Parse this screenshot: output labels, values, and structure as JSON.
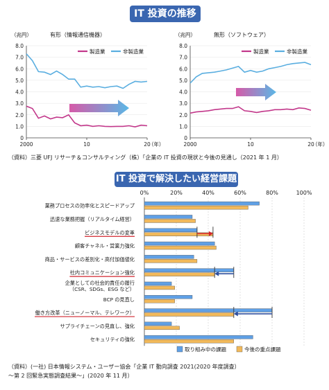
{
  "header": {
    "title": "IT 投資の推移"
  },
  "chart_data": [
    {
      "type": "line",
      "title": "有形（情報通信機器）",
      "ylabel": "（兆円）",
      "xlabel": "（年）",
      "ylim": [
        0,
        8.0
      ],
      "yticks": [
        "0",
        "1.0",
        "2.0",
        "3.0",
        "4.0",
        "5.0",
        "6.0",
        "7.0",
        "8.0"
      ],
      "xticks": [
        "2000",
        "10",
        "20"
      ],
      "x": [
        2000,
        2001,
        2002,
        2003,
        2004,
        2005,
        2006,
        2007,
        2008,
        2009,
        2010,
        2011,
        2012,
        2013,
        2014,
        2015,
        2016,
        2017,
        2018,
        2019,
        2020
      ],
      "series": [
        {
          "name": "製造業",
          "color": "#c2378a",
          "values": [
            2.75,
            2.55,
            1.7,
            1.9,
            1.65,
            1.8,
            1.75,
            2.0,
            1.3,
            1.05,
            1.1,
            1.0,
            1.05,
            1.0,
            0.98,
            1.0,
            1.0,
            1.05,
            0.95,
            1.1,
            1.05
          ]
        },
        {
          "name": "非製造業",
          "color": "#5aaee0",
          "values": [
            7.3,
            6.7,
            5.75,
            5.7,
            5.5,
            5.8,
            5.5,
            5.1,
            5.1,
            4.4,
            4.5,
            4.4,
            4.45,
            4.35,
            4.45,
            4.5,
            4.3,
            4.65,
            4.9,
            4.85,
            4.9
          ]
        }
      ]
    },
    {
      "type": "line",
      "title": "無形（ソフトウェア）",
      "ylabel": "（兆円）",
      "xlabel": "（年）",
      "ylim": [
        0,
        8.0
      ],
      "yticks": [
        "0",
        "1.0",
        "2.0",
        "3.0",
        "4.0",
        "5.0",
        "6.0",
        "7.0",
        "8.0"
      ],
      "xticks": [
        "2000",
        "10",
        "20"
      ],
      "x": [
        2000,
        2001,
        2002,
        2003,
        2004,
        2005,
        2006,
        2007,
        2008,
        2009,
        2010,
        2011,
        2012,
        2013,
        2014,
        2015,
        2016,
        2017,
        2018,
        2019,
        2020
      ],
      "series": [
        {
          "name": "製造業",
          "color": "#c2378a",
          "values": [
            2.15,
            2.25,
            2.3,
            2.35,
            2.45,
            2.5,
            2.55,
            2.55,
            2.7,
            2.35,
            2.3,
            2.2,
            2.3,
            2.35,
            2.45,
            2.45,
            2.5,
            2.45,
            2.6,
            2.55,
            2.4
          ]
        },
        {
          "name": "非製造業",
          "color": "#5aaee0",
          "values": [
            4.75,
            5.3,
            5.6,
            5.65,
            5.7,
            5.8,
            5.9,
            6.05,
            6.2,
            5.7,
            5.85,
            5.7,
            5.8,
            6.0,
            6.1,
            6.2,
            6.35,
            6.45,
            6.5,
            6.55,
            6.35
          ]
        }
      ]
    },
    {
      "type": "bar",
      "title": "IT 投資で解決したい経営課題",
      "categories": [
        "業務プロセスの効率化とスピードアップ",
        "迅速な業務把握（リアルタイム経営）",
        "ビジネスモデルの変革",
        "顧客チャネル・営業力強化",
        "商品・サービスの差別化・高付加価値化",
        "社内コミュニケーション強化",
        "企業としての社会的責任の履行（CSR、SDGs、ESG など）",
        "BCP の見直し",
        "働き方改革（ニューノーマル、テレワーク）",
        "サプライチェーンの見直し、強化",
        "セキュリティの強化"
      ],
      "category_lines": [
        [
          "業務プロセスの効率化とスピードアップ"
        ],
        [
          "迅速な業務把握（リアルタイム経営）"
        ],
        [
          "ビジネスモデルの変革"
        ],
        [
          "顧客チャネル・営業力強化"
        ],
        [
          "商品・サービスの差別化・高付加価値化"
        ],
        [
          "社内コミュニケーション強化"
        ],
        [
          "企業としての社会的責任の履行",
          "（CSR、SDGs、ESG など）"
        ],
        [
          "BCP の見直し"
        ],
        [
          "働き方改革（ニューノーマル、テレワーク）"
        ],
        [
          "サプライチェーンの見直し、強化"
        ],
        [
          "セキュリティの強化"
        ]
      ],
      "highlighted_categories": [
        "ビジネスモデルの変革",
        "社内コミュニケーション強化",
        "働き方改革（ニューノーマル、テレワーク）"
      ],
      "xlim": [
        0,
        100
      ],
      "xticks": [
        "0%",
        "20%",
        "40%",
        "60%",
        "80%",
        "100%"
      ],
      "series": [
        {
          "name": "取り組み中の課題",
          "color": "#5fa0e6",
          "values": [
            72,
            30,
            33,
            44,
            31,
            56,
            17,
            30,
            80,
            17,
            68
          ]
        },
        {
          "name": "今後の重点課題",
          "color": "#f2b95a",
          "values": [
            65,
            32,
            43,
            45,
            33,
            44,
            19,
            19,
            56,
            22,
            56
          ]
        }
      ]
    }
  ],
  "notes": {
    "source1": "（資料）三菱 UFJ リサーチ＆コンサルティング（株）「企業の IT 投資の現状と今後の見通し（2021 年 1 月）",
    "source2_line1": "（資料）(一社) 日本情報システム・ユーザー協会「企業 IT 動向調査 2021(2020 年度調査）",
    "source2_line2": "～第 2 回緊急実態調査結果～」(2020 年 11 月）"
  }
}
